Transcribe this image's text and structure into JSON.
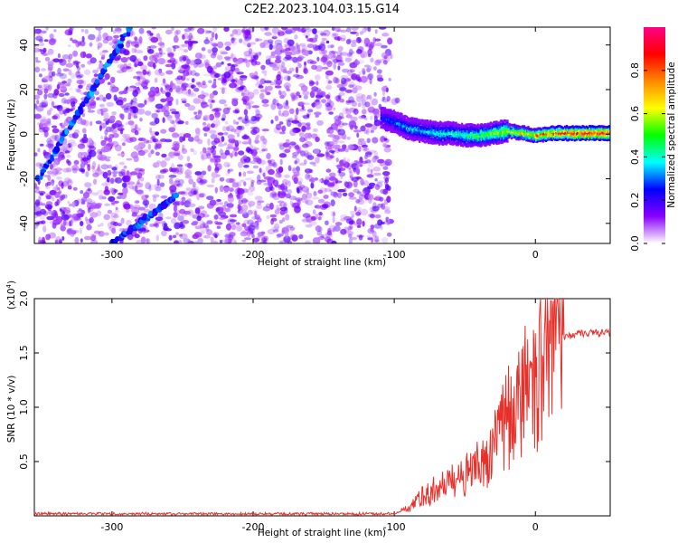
{
  "title": "C2E2.2023.104.03.15.G14",
  "chart_data": [
    {
      "type": "heatmap",
      "title": "C2E2.2023.104.03.15.G14",
      "xlabel": "Height of straight line (km)",
      "ylabel": "Frequency (Hz)",
      "xlim": [
        -355,
        53
      ],
      "ylim": [
        -49,
        48
      ],
      "x_ticks": [
        -300,
        -200,
        -100,
        0
      ],
      "y_ticks": [
        -40,
        -20,
        0,
        20,
        40
      ],
      "x_tick_labels": [
        "-300",
        "-200",
        "-100",
        "0"
      ],
      "y_tick_labels": [
        "-40",
        "-20",
        "0",
        "20",
        "40"
      ],
      "noise_region_x": [
        -355,
        -103
      ],
      "noise_amplitude": 0.15,
      "streak_lines": [
        {
          "x": [
            -352,
            -287
          ],
          "y": [
            -20,
            48
          ],
          "amplitude": 0.2
        },
        {
          "x": [
            -300,
            -255
          ],
          "y": [
            -49,
            -28
          ],
          "amplitude": 0.18
        }
      ],
      "signal_band": {
        "x": [
          -110,
          -100,
          -90,
          -80,
          -70,
          -60,
          -50,
          -40,
          -30,
          -20,
          -10,
          0,
          10,
          20,
          30,
          40,
          53
        ],
        "center_hz": [
          8,
          6,
          3,
          2,
          1,
          1,
          0,
          0,
          1,
          2,
          1,
          0,
          1,
          1,
          1,
          1,
          1
        ],
        "amplitude": [
          0.25,
          0.3,
          0.35,
          0.35,
          0.4,
          0.4,
          0.45,
          0.5,
          0.55,
          0.6,
          0.65,
          0.75,
          0.8,
          0.85,
          0.9,
          0.9,
          0.9
        ]
      },
      "colorbar": {
        "label": "Normalized spectral amplitude",
        "range": [
          0,
          1
        ],
        "ticks": [
          0.0,
          0.2,
          0.4,
          0.6,
          0.8
        ],
        "tick_labels": [
          "0.0",
          "0.2",
          "0.4",
          "0.6",
          "0.8"
        ],
        "colors": [
          "#ffffff",
          "#8800ff",
          "#0000ff",
          "#00ffff",
          "#00ff00",
          "#ffff00",
          "#ff8800",
          "#ff0000",
          "#ff0088"
        ]
      }
    },
    {
      "type": "line",
      "xlabel": "Height of straight line (km)",
      "ylabel": "SNR (10 * v/v)",
      "y_multiplier_label": "(x10",
      "y_multiplier_exp": "4",
      "y_multiplier_close": ")",
      "xlim": [
        -355,
        53
      ],
      "ylim": [
        0,
        20000
      ],
      "x_ticks": [
        -300,
        -200,
        -100,
        0
      ],
      "x_tick_labels": [
        "-300",
        "-200",
        "-100",
        "0"
      ],
      "y_ticks": [
        5000,
        10000,
        15000,
        20000
      ],
      "y_tick_labels": [
        "0.5",
        "1.0",
        "1.5",
        "2.0"
      ],
      "series": [
        {
          "name": "SNR",
          "color": "#e8302a",
          "x": [
            -355,
            -300,
            -200,
            -100,
            -90,
            -80,
            -70,
            -60,
            -50,
            -40,
            -30,
            -20,
            -10,
            0,
            5,
            10,
            15,
            20,
            30,
            40,
            53
          ],
          "values": [
            200,
            200,
            180,
            200,
            700,
            1800,
            2500,
            3000,
            3800,
            4500,
            6000,
            9000,
            11000,
            12500,
            13500,
            15000,
            16500,
            16500,
            16800,
            16900,
            16800
          ]
        }
      ]
    }
  ]
}
